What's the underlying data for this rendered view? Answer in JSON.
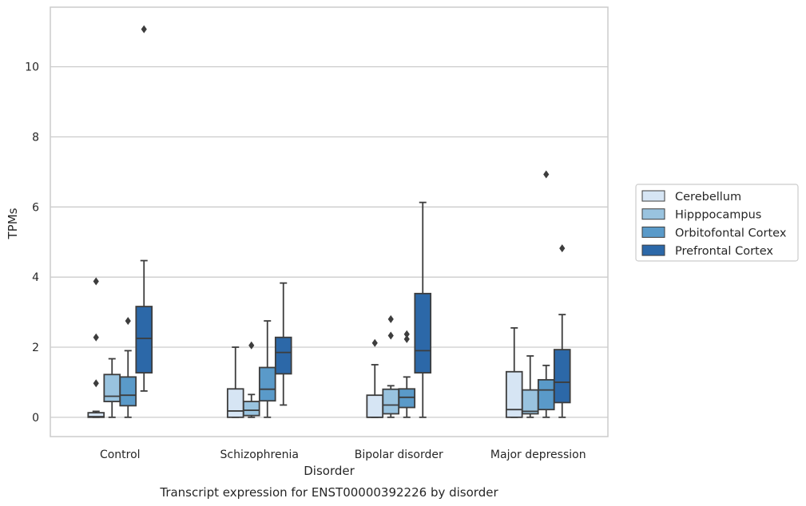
{
  "chart_data": {
    "type": "boxplot",
    "title": "Transcript expression for ENST00000392226 by disorder",
    "xlabel": "Disorder",
    "ylabel": "TPMs",
    "ylim": [
      -0.55,
      11.7
    ],
    "yticks": [
      0,
      2,
      4,
      6,
      8,
      10
    ],
    "grid": true,
    "legend_position": "right",
    "categories": [
      "Control",
      "Schizophrenia",
      "Bipolar disorder",
      "Major depression"
    ],
    "series": [
      {
        "name": "Cerebellum",
        "color": "#d6e5f4",
        "boxes": [
          {
            "whislo": 0.0,
            "q1": 0.0,
            "med": 0.02,
            "q3": 0.13,
            "whishi": 0.17,
            "fliers": [
              0.97,
              2.28,
              3.88
            ]
          },
          {
            "whislo": 0.0,
            "q1": 0.0,
            "med": 0.18,
            "q3": 0.81,
            "whishi": 2.0,
            "fliers": []
          },
          {
            "whislo": 0.0,
            "q1": 0.0,
            "med": 0.0,
            "q3": 0.63,
            "whishi": 1.5,
            "fliers": [
              2.12
            ]
          },
          {
            "whislo": 0.0,
            "q1": 0.0,
            "med": 0.22,
            "q3": 1.3,
            "whishi": 2.55,
            "fliers": []
          }
        ]
      },
      {
        "name": "Hipppocampus",
        "color": "#99c3df",
        "boxes": [
          {
            "whislo": 0.0,
            "q1": 0.45,
            "med": 0.6,
            "q3": 1.22,
            "whishi": 1.67,
            "fliers": []
          },
          {
            "whislo": 0.0,
            "q1": 0.05,
            "med": 0.2,
            "q3": 0.45,
            "whishi": 0.65,
            "fliers": [
              2.05
            ]
          },
          {
            "whislo": 0.0,
            "q1": 0.1,
            "med": 0.35,
            "q3": 0.8,
            "whishi": 0.9,
            "fliers": [
              2.33,
              2.8
            ]
          },
          {
            "whislo": 0.0,
            "q1": 0.1,
            "med": 0.17,
            "q3": 0.78,
            "whishi": 1.75,
            "fliers": []
          }
        ]
      },
      {
        "name": "Orbitofontal Cortex",
        "color": "#5a9ac9",
        "boxes": [
          {
            "whislo": 0.0,
            "q1": 0.33,
            "med": 0.63,
            "q3": 1.15,
            "whishi": 1.9,
            "fliers": [
              2.75
            ]
          },
          {
            "whislo": 0.0,
            "q1": 0.47,
            "med": 0.8,
            "q3": 1.42,
            "whishi": 2.75,
            "fliers": []
          },
          {
            "whislo": 0.0,
            "q1": 0.28,
            "med": 0.57,
            "q3": 0.81,
            "whishi": 1.15,
            "fliers": [
              2.23,
              2.37
            ]
          },
          {
            "whislo": 0.0,
            "q1": 0.22,
            "med": 0.78,
            "q3": 1.07,
            "whishi": 1.48,
            "fliers": [
              6.93
            ]
          }
        ]
      },
      {
        "name": "Prefrontal Cortex",
        "color": "#2c68a8",
        "boxes": [
          {
            "whislo": 0.75,
            "q1": 1.27,
            "med": 2.25,
            "q3": 3.16,
            "whishi": 4.47,
            "fliers": [
              11.07
            ]
          },
          {
            "whislo": 0.35,
            "q1": 1.24,
            "med": 1.85,
            "q3": 2.28,
            "whishi": 3.83,
            "fliers": []
          },
          {
            "whislo": 0.0,
            "q1": 1.27,
            "med": 1.9,
            "q3": 3.53,
            "whishi": 6.13,
            "fliers": []
          },
          {
            "whislo": 0.0,
            "q1": 0.42,
            "med": 1.0,
            "q3": 1.93,
            "whishi": 2.93,
            "fliers": [
              4.82
            ]
          }
        ]
      }
    ]
  },
  "colors": {
    "grid": "#cccccc",
    "frame": "#cccccc",
    "box_edge": "#3d3d3d",
    "text": "#262626"
  }
}
